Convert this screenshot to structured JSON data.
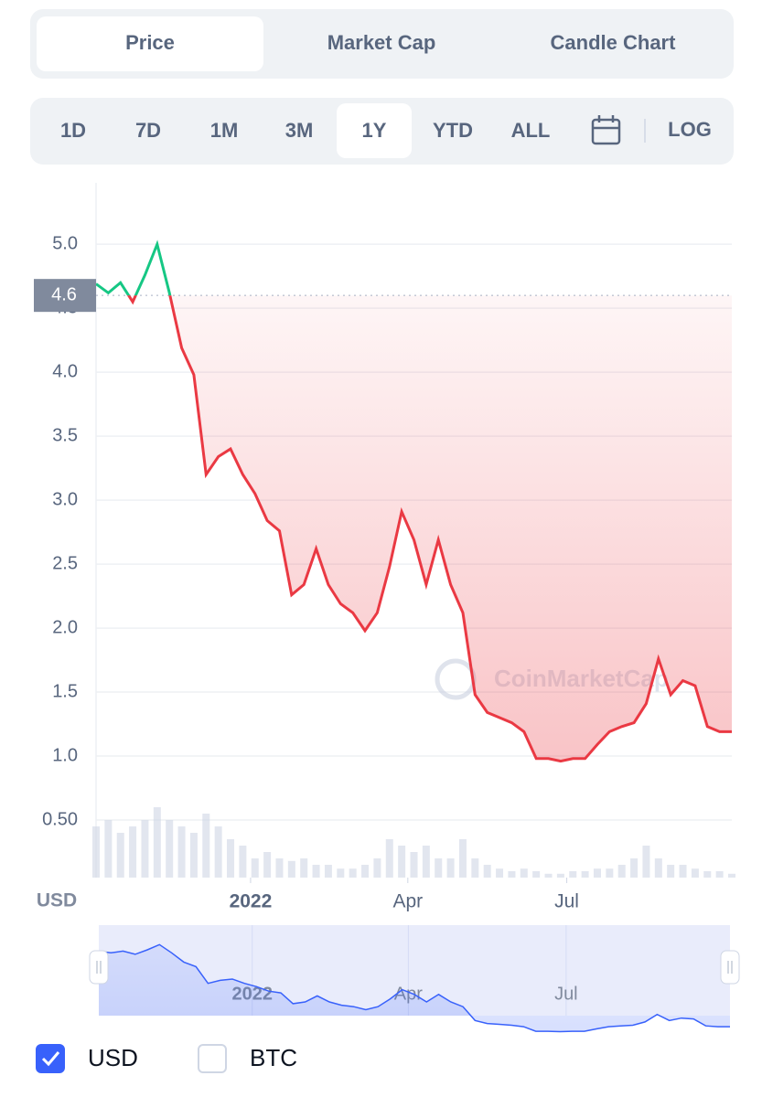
{
  "tabs": {
    "items": [
      "Price",
      "Market Cap",
      "Candle Chart"
    ],
    "active": 0
  },
  "ranges": {
    "items": [
      "1D",
      "7D",
      "1M",
      "3M",
      "1Y",
      "YTD",
      "ALL"
    ],
    "active": 4,
    "log": "LOG"
  },
  "chart_data": {
    "type": "line",
    "axis_label": "USD",
    "watermark": "CoinMarketCap",
    "x": [
      0,
      1,
      2,
      3,
      4,
      5,
      6,
      7,
      8,
      9,
      10,
      11,
      12,
      13,
      14,
      15,
      16,
      17,
      18,
      19,
      20,
      21,
      22,
      23,
      24,
      25,
      26,
      27,
      28,
      29,
      30,
      31,
      32,
      33,
      34,
      35,
      36,
      37,
      38,
      39,
      40,
      41,
      42,
      43,
      44,
      45,
      46,
      47,
      48,
      49,
      50,
      51,
      52
    ],
    "values": [
      4.69,
      4.62,
      4.7,
      4.55,
      4.76,
      5.0,
      4.62,
      4.19,
      3.98,
      3.2,
      3.34,
      3.4,
      3.2,
      3.05,
      2.84,
      2.76,
      2.26,
      2.34,
      2.62,
      2.34,
      2.19,
      2.12,
      1.98,
      2.12,
      2.48,
      2.91,
      2.69,
      2.34,
      2.69,
      2.34,
      2.12,
      1.48,
      1.34,
      1.3,
      1.26,
      1.19,
      0.98,
      0.98,
      0.96,
      0.98,
      0.98,
      1.09,
      1.19,
      1.23,
      1.26,
      1.41,
      1.76,
      1.48,
      1.59,
      1.55,
      1.23,
      1.19,
      1.19
    ],
    "volume": [
      0.45,
      0.5,
      0.4,
      0.45,
      0.5,
      0.6,
      0.5,
      0.45,
      0.4,
      0.55,
      0.45,
      0.35,
      0.3,
      0.2,
      0.25,
      0.2,
      0.18,
      0.2,
      0.15,
      0.15,
      0.12,
      0.12,
      0.15,
      0.2,
      0.35,
      0.3,
      0.25,
      0.3,
      0.2,
      0.2,
      0.35,
      0.2,
      0.15,
      0.12,
      0.1,
      0.12,
      0.1,
      0.08,
      0.08,
      0.1,
      0.1,
      0.12,
      0.12,
      0.15,
      0.2,
      0.3,
      0.2,
      0.15,
      0.15,
      0.12,
      0.1,
      0.1,
      0.08
    ],
    "reference": {
      "value": 4.6,
      "label": "4.6"
    },
    "colors": {
      "up": "#16c784",
      "down": "#ea3943",
      "navigator": "#3861fb",
      "volume": "#cfd6e4"
    },
    "xlim": [
      0,
      52
    ],
    "xticks": [
      {
        "value": 12.64,
        "label": "2022"
      },
      {
        "value": 25.5,
        "label": "Apr"
      },
      {
        "value": 38.5,
        "label": "Jul"
      }
    ],
    "ylim": [
      0.05,
      5.48
    ],
    "yticks": [
      {
        "value": 0.5,
        "label": "0.50"
      },
      {
        "value": 1,
        "label": "1.0"
      },
      {
        "value": 1.5,
        "label": "1.5"
      },
      {
        "value": 2,
        "label": "2.0"
      },
      {
        "value": 2.5,
        "label": "2.5"
      },
      {
        "value": 3,
        "label": "3.0"
      },
      {
        "value": 3.5,
        "label": "3.5"
      },
      {
        "value": 4,
        "label": "4.0"
      },
      {
        "value": 4.5,
        "label": "4.5"
      },
      {
        "value": 5,
        "label": "5.0"
      }
    ],
    "grid": true
  },
  "currencies": {
    "items": [
      "USD",
      "BTC"
    ],
    "checked": [
      true,
      false
    ]
  }
}
